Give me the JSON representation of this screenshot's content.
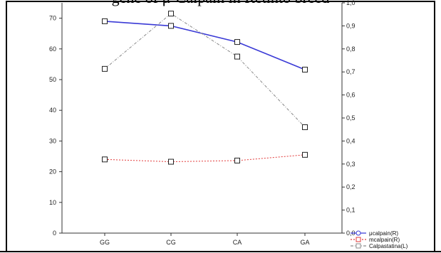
{
  "chart_data": {
    "type": "line",
    "title": "gene of μ-Calpain in Retinto breed",
    "categories": [
      "GG",
      "CG",
      "CA",
      "GA"
    ],
    "y_left": {
      "ticks": [
        0,
        10,
        20,
        30,
        40,
        50,
        60,
        70
      ],
      "range": [
        0,
        75
      ]
    },
    "y_right": {
      "ticks": [
        "0,0",
        "0,1",
        "0,2",
        "0,3",
        "0,4",
        "0,5",
        "0,6",
        "0,7",
        "0,8",
        "0,9",
        "1,0"
      ],
      "range": [
        0,
        1.0
      ]
    },
    "series": [
      {
        "name": "μcalpain(R)",
        "axis": "right",
        "values": [
          0.92,
          0.9,
          0.83,
          0.71
        ],
        "color": "#3a3ad6",
        "dash": "",
        "marker": "circle"
      },
      {
        "name": "mcalpain(R)",
        "axis": "right",
        "values": [
          0.32,
          0.31,
          0.315,
          0.34
        ],
        "color": "#e23a3a",
        "dash": "2,2",
        "marker": "square"
      },
      {
        "name": "Calpastatina(L)",
        "axis": "left",
        "values": [
          53.5,
          71.5,
          57.5,
          34.5
        ],
        "color": "#8a8a8a",
        "dash": "4,2,1,2",
        "marker": "square"
      }
    ],
    "legend_position": "bottom-right",
    "grid": false
  }
}
